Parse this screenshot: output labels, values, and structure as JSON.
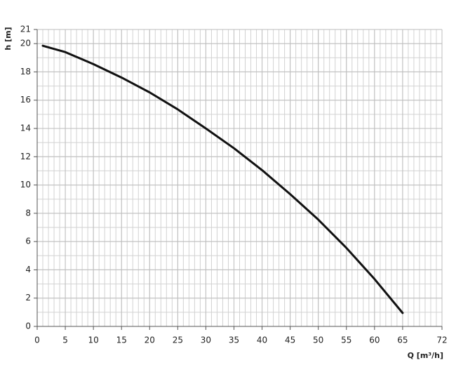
{
  "chart_data": {
    "type": "line",
    "x_label": "Q [m³/h]",
    "y_label": "h [m]",
    "x": [
      1,
      5,
      10,
      15,
      20,
      25,
      30,
      35,
      40,
      45,
      50,
      55,
      60,
      65
    ],
    "series": [
      {
        "color": "#111111",
        "values": [
          19.85,
          19.4,
          18.55,
          17.6,
          16.55,
          15.35,
          14.0,
          12.6,
          11.05,
          9.35,
          7.55,
          5.55,
          3.35,
          0.95
        ]
      }
    ],
    "xlim": [
      0,
      72
    ],
    "xticks": [
      0,
      5,
      10,
      15,
      20,
      25,
      30,
      35,
      40,
      45,
      50,
      55,
      60,
      65,
      72
    ],
    "ylim": [
      0,
      21
    ],
    "yticks": [
      0,
      2,
      4,
      6,
      8,
      10,
      12,
      14,
      16,
      18,
      20,
      21
    ],
    "grid": true
  }
}
